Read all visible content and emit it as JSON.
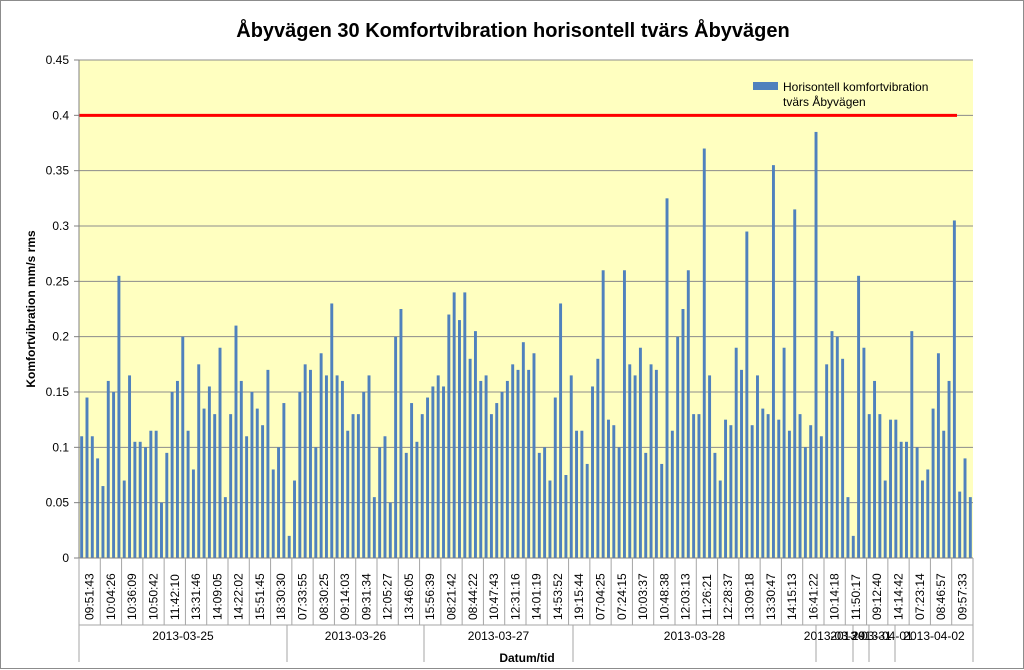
{
  "chart_data": {
    "type": "bar",
    "title": "Åbyvägen 30  Komfortvibration horisontell tvärs Åbyvägen",
    "ylabel": "Komfortvibration mm/s rms",
    "xlabel": "Datum/tid",
    "ylim": [
      0,
      0.45
    ],
    "yticks": [
      0,
      0.05,
      0.1,
      0.15,
      0.2,
      0.25,
      0.3,
      0.35,
      0.4,
      0.45
    ],
    "ytick_labels": [
      "0",
      "0.05",
      "0.1",
      "0.15",
      "0.2",
      "0.25",
      "0.3",
      "0.35",
      "0.4",
      "0.45"
    ],
    "grid": true,
    "legend_position": "top-right",
    "series": [
      {
        "name": "Horisontell komfortvibration tvärs Åbyvägen",
        "color": "#4F81BD",
        "values": [
          0.11,
          0.145,
          0.11,
          0.09,
          0.065,
          0.16,
          0.15,
          0.255,
          0.07,
          0.165,
          0.105,
          0.105,
          0.1,
          0.115,
          0.115,
          0.05,
          0.095,
          0.15,
          0.16,
          0.2,
          0.115,
          0.08,
          0.175,
          0.135,
          0.155,
          0.13,
          0.19,
          0.055,
          0.13,
          0.21,
          0.16,
          0.11,
          0.15,
          0.135,
          0.12,
          0.17,
          0.08,
          0.1,
          0.14,
          0.02,
          0.07,
          0.15,
          0.175,
          0.17,
          0.1,
          0.185,
          0.165,
          0.23,
          0.165,
          0.16,
          0.115,
          0.13,
          0.13,
          0.15,
          0.165,
          0.055,
          0.1,
          0.11,
          0.05,
          0.2,
          0.225,
          0.095,
          0.14,
          0.105,
          0.13,
          0.145,
          0.155,
          0.165,
          0.155,
          0.22,
          0.24,
          0.215,
          0.24,
          0.18,
          0.205,
          0.16,
          0.165,
          0.13,
          0.14,
          0.15,
          0.16,
          0.175,
          0.17,
          0.195,
          0.17,
          0.185,
          0.095,
          0.1,
          0.07,
          0.145,
          0.23,
          0.075,
          0.165,
          0.115,
          0.115,
          0.085,
          0.155,
          0.18,
          0.26,
          0.125,
          0.12,
          0.1,
          0.26,
          0.175,
          0.165,
          0.19,
          0.095,
          0.175,
          0.17,
          0.085,
          0.325,
          0.115,
          0.2,
          0.225,
          0.26,
          0.13,
          0.13,
          0.37,
          0.165,
          0.095,
          0.07,
          0.125,
          0.12,
          0.19,
          0.17,
          0.295,
          0.12,
          0.165,
          0.135,
          0.13,
          0.355,
          0.125,
          0.19,
          0.115,
          0.315,
          0.13,
          0.1,
          0.12,
          0.385,
          0.11,
          0.175,
          0.205,
          0.2,
          0.18,
          0.055,
          0.02,
          0.255,
          0.19,
          0.13,
          0.16,
          0.13,
          0.07,
          0.125,
          0.125,
          0.105,
          0.105,
          0.205,
          0.1,
          0.07,
          0.08,
          0.135,
          0.185,
          0.115,
          0.16,
          0.305,
          0.06,
          0.09,
          0.055
        ]
      }
    ],
    "limit_line": {
      "value": 0.4,
      "color": "#FF0000"
    },
    "time_labels": [
      "09:51:43",
      "10:04:26",
      "10:36:09",
      "10:50:42",
      "11:42:10",
      "13:31:46",
      "14:09:05",
      "14:22:02",
      "15:51:45",
      "18:30:30",
      "07:33:55",
      "08:30:25",
      "09:14:03",
      "09:31:34",
      "12:05:27",
      "13:46:05",
      "15:56:39",
      "08:21:42",
      "08:44:22",
      "10:47:43",
      "12:31:16",
      "14:01:19",
      "14:53:52",
      "19:15:44",
      "07:04:25",
      "07:24:15",
      "10:03:37",
      "10:48:38",
      "12:03:13",
      "11:26:21",
      "12:28:37",
      "13:09:18",
      "13:30:47",
      "14:15:13",
      "16:41:22",
      "10:14:18",
      "11:50:17",
      "09:12:40",
      "14:14:42",
      "07:23:14",
      "08:46:57",
      "09:57:33"
    ],
    "date_labels": [
      "2013-03-25",
      "2013-03-26",
      "2013-03-27",
      "2013-03-28",
      "2013-03-29",
      "2013-03-31",
      "2013-04-01",
      "2013-04-02"
    ]
  },
  "colors": {
    "plot_background": "#FFFFC0",
    "gridline": "#8C8C8C",
    "bar": "#4F81BD",
    "limit_line": "#FF0000"
  }
}
